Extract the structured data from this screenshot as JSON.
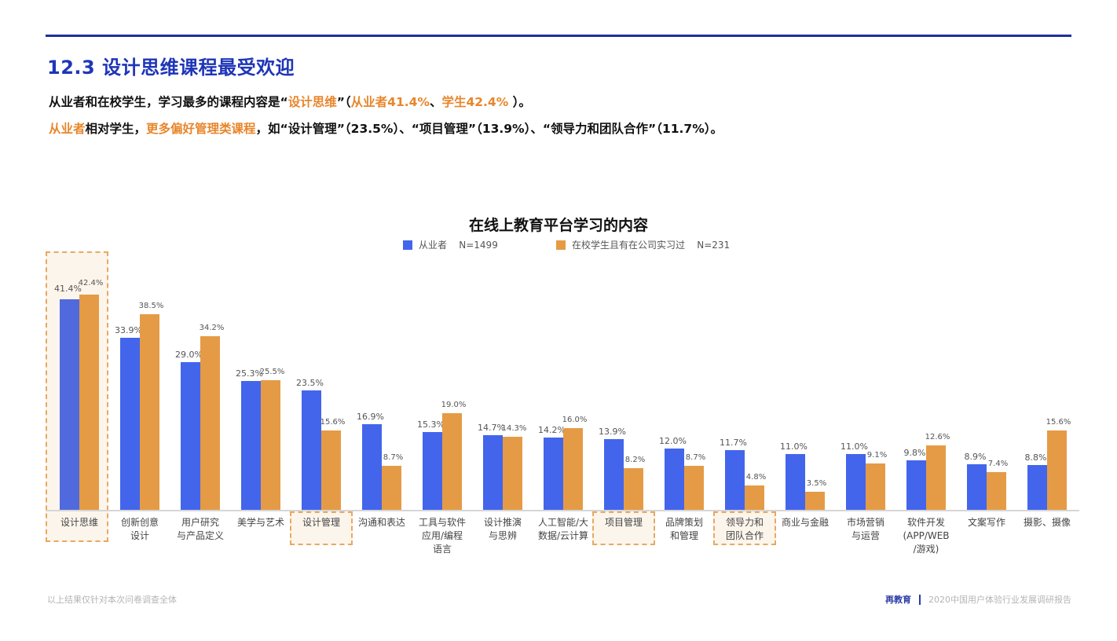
{
  "header": {
    "title": "12.3 设计思维课程最受欢迎",
    "line1": {
      "p1": "从业者和在校学生，学习最多的课程内容是“",
      "h1": "设计思维",
      "p2": "”（",
      "h2": "从业者41.4%",
      "p3": "、",
      "h3": "学生42.4%",
      "p4": " ）。"
    },
    "line2": {
      "h1": "从业者",
      "p1": "相对学生，",
      "h2": "更多偏好管理类课程",
      "p2": "，如“设计管理”（23.5%）、“项目管理”（13.9%）、“领导力和团队合作”（11.7%）。"
    }
  },
  "colors": {
    "accent_blue": "#1f35b8",
    "highlight_orange": "#e8862b",
    "series_blue": "#4365ec",
    "series_orange": "#e59b45"
  },
  "chart_data": {
    "type": "bar",
    "title": "在线上教育平台学习的内容",
    "xlabel": "",
    "ylabel": "",
    "ylim": [
      0,
      45
    ],
    "grid": false,
    "legend_position": "top",
    "categories": [
      "设计思维",
      "创新创意\n设计",
      "用户研究\n与产品定义",
      "美学与艺术",
      "设计管理",
      "沟通和表达",
      "工具与软件\n应用/编程\n语言",
      "设计推演\n与思辨",
      "人工智能/大\n数据/云计算",
      "项目管理",
      "品牌策划\n和管理",
      "领导力和\n团队合作",
      "商业与金融",
      "市场营销\n与运营",
      "软件开发\n(APP/WEB\n/游戏)",
      "文案写作",
      "摄影、摄像"
    ],
    "highlighted_categories": [
      "设计思维",
      "设计管理",
      "项目管理",
      "领导力和\n团队合作"
    ],
    "series": [
      {
        "name": "从业者",
        "legend": "从业者    N=1499",
        "values": [
          41.4,
          33.9,
          29.0,
          25.3,
          23.5,
          16.9,
          15.3,
          14.7,
          14.2,
          13.9,
          12.0,
          11.7,
          11.0,
          11.0,
          9.8,
          8.9,
          8.8
        ],
        "labels": [
          "41.4%",
          "33.9%",
          "29.0%",
          "25.3%",
          "23.5%",
          "16.9%",
          "15.3%",
          "14.7%",
          "14.2%",
          "13.9%",
          "12.0%",
          "11.7%",
          "11.0%",
          "11.0%",
          "9.8%",
          "8.9%",
          "8.8%"
        ]
      },
      {
        "name": "在校学生且有在公司实习过",
        "legend": "在校学生且有在公司实习过    N=231",
        "values": [
          42.4,
          38.5,
          34.2,
          25.5,
          15.6,
          8.7,
          19.0,
          14.3,
          16.0,
          8.2,
          8.7,
          4.8,
          3.5,
          9.1,
          12.6,
          7.4,
          15.6
        ],
        "labels": [
          "42.4%",
          "38.5%",
          "34.2%",
          "25.5%",
          "15.6%",
          "8.7%",
          "19.0%",
          "14.3%",
          "16.0%",
          "8.2%",
          "8.7%",
          "4.8%",
          "3.5%",
          "9.1%",
          "12.6%",
          "7.4%",
          "15.6%"
        ]
      }
    ]
  },
  "footer": {
    "note": "以上结果仅针对本次问卷调查全体",
    "brand": "再教育",
    "report": "2020中国用户体验行业发展调研报告"
  }
}
